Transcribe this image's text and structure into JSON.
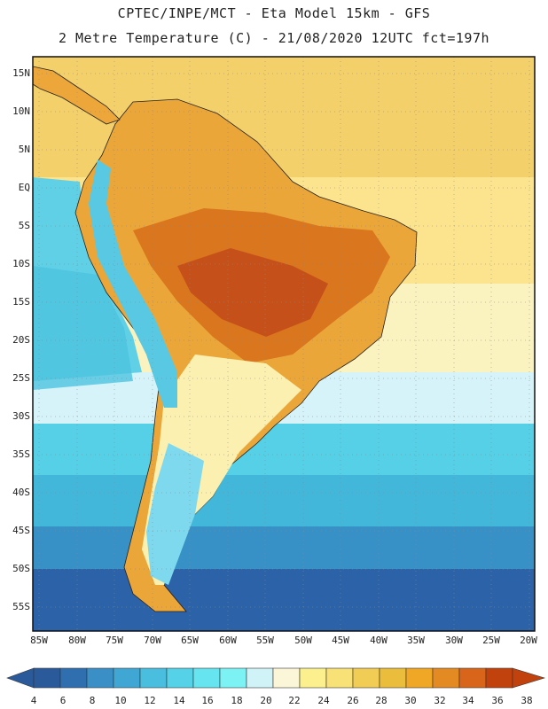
{
  "title": {
    "line1": "CPTEC/INPE/MCT -  Eta Model 15km - GFS",
    "line2": "2 Metre Temperature (C) - 21/08/2020 12UTC fct=197h"
  },
  "map": {
    "latitude_labels": [
      "15N",
      "10N",
      "5N",
      "EQ",
      "5S",
      "10S",
      "15S",
      "20S",
      "25S",
      "30S",
      "35S",
      "40S",
      "45S",
      "50S",
      "55S"
    ],
    "longitude_labels": [
      "85W",
      "80W",
      "75W",
      "70W",
      "65W",
      "60W",
      "55W",
      "50W",
      "45W",
      "40W",
      "35W",
      "30W",
      "25W",
      "20W"
    ],
    "region": "South America"
  },
  "colorbar": {
    "labels": [
      "4",
      "6",
      "8",
      "10",
      "12",
      "14",
      "16",
      "18",
      "20",
      "22",
      "24",
      "26",
      "28",
      "30",
      "32",
      "34",
      "36",
      "38"
    ],
    "colors": [
      "#2b5a9b",
      "#2f6fb0",
      "#3a8fc6",
      "#40a6d4",
      "#49bedf",
      "#56d2e8",
      "#66e4f0",
      "#7cf2f5",
      "#d0f3f8",
      "#fbf6d7",
      "#fbf08d",
      "#f8e176",
      "#f2cd55",
      "#eabd3c",
      "#f1a726",
      "#e48a22",
      "#d8651a",
      "#c2420d"
    ]
  }
}
